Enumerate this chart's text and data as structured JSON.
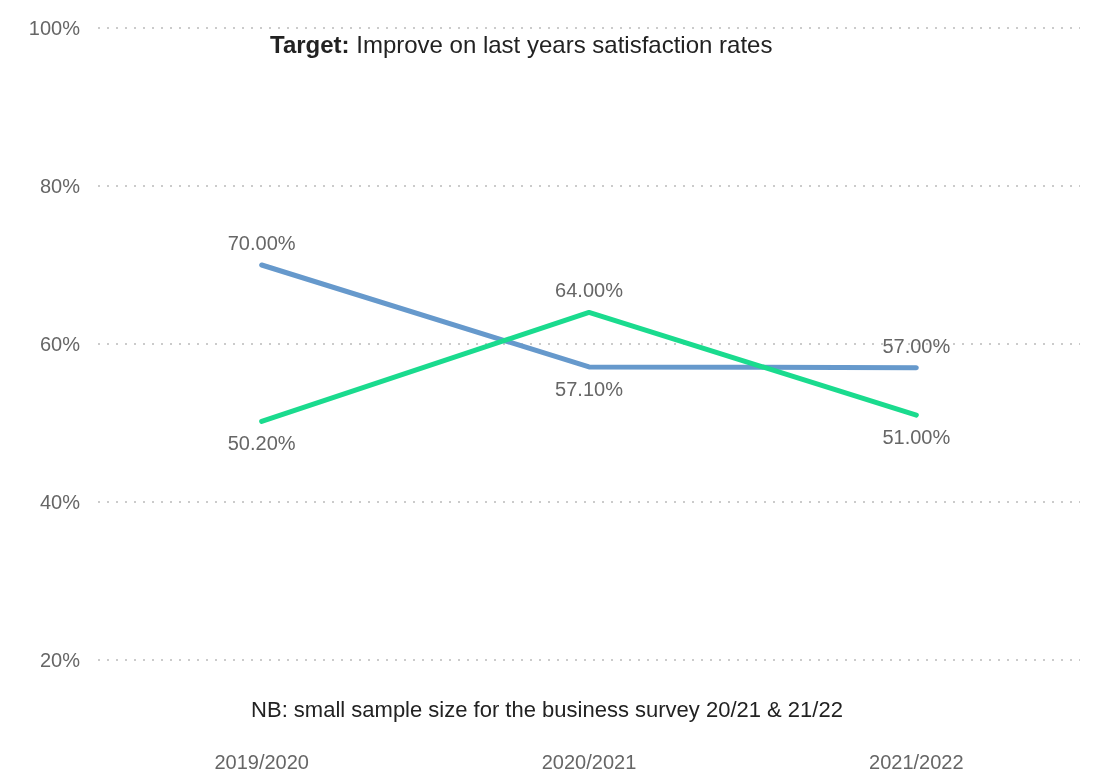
{
  "chart_data": {
    "type": "line",
    "title": "Target: Improve on last years satisfaction rates",
    "categories": [
      "2019/2020",
      "2020/2021",
      "2021/2022"
    ],
    "series": [
      {
        "color": "#6699cc",
        "values": [
          70,
          57.1,
          57
        ],
        "value_labels": [
          "70.00%",
          "57.10%",
          "57.00%"
        ]
      },
      {
        "color": "#1adb8e",
        "values": [
          50.2,
          64,
          51
        ],
        "value_labels": [
          "50.20%",
          "64.00%",
          "51.00%"
        ]
      }
    ],
    "ylim": [
      20,
      100
    ],
    "yticks": [
      {
        "value": 20,
        "label": "20%"
      },
      {
        "value": 40,
        "label": "40%"
      },
      {
        "value": 60,
        "label": "60%"
      },
      {
        "value": 80,
        "label": "80%"
      },
      {
        "value": 100,
        "label": "100%"
      }
    ],
    "grid": "y",
    "marker": "none",
    "line_style": "solid",
    "annotations": [
      "NB: small sample size for the business survey 20/21 & 21/22"
    ]
  }
}
